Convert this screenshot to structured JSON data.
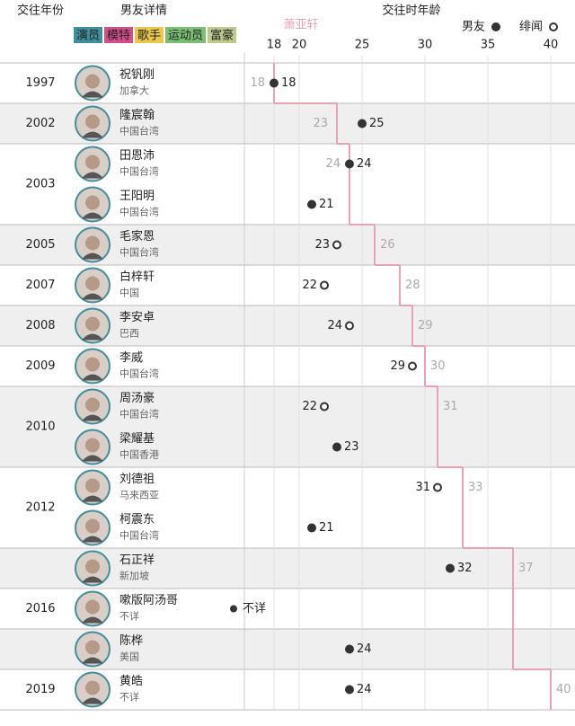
{
  "chart_data": {
    "type": "dot",
    "header": {
      "year": "交往年份",
      "details": "男友详情",
      "x_title": "交往时年龄"
    },
    "tags": [
      {
        "name": "演员",
        "color": "#3f8f9c"
      },
      {
        "name": "模特",
        "color": "#d14f8a"
      },
      {
        "name": "歌手",
        "color": "#e9c84a"
      },
      {
        "name": "运动员",
        "color": "#7bbf74"
      },
      {
        "name": "富豪",
        "color": "#bccb8c"
      }
    ],
    "line_name": "萧亚轩",
    "line_color": "#e6a4b2",
    "legend": [
      {
        "name": "男友",
        "marker": "filled"
      },
      {
        "name": "绯闻",
        "marker": "open"
      }
    ],
    "xlim": [
      18,
      40
    ],
    "xticks": [
      18,
      20,
      25,
      30,
      35,
      40
    ],
    "years": [
      {
        "label": "1997",
        "rows": 1
      },
      {
        "label": "2002",
        "rows": 1
      },
      {
        "label": "2003",
        "rows": 2
      },
      {
        "label": "2005",
        "rows": 1
      },
      {
        "label": "2007",
        "rows": 1
      },
      {
        "label": "2008",
        "rows": 1
      },
      {
        "label": "2009",
        "rows": 1
      },
      {
        "label": "2010",
        "rows": 2
      },
      {
        "label": "2012",
        "rows": 2
      },
      {
        "label": null,
        "rows": 1
      },
      {
        "label": "2016",
        "rows": 1
      },
      {
        "label": null,
        "rows": 1
      },
      {
        "label": "2019",
        "rows": 1
      }
    ],
    "names": [
      "祝钒刚",
      "隆宸翰",
      "田恩沛",
      "王阳明",
      "毛家恩",
      "白梓轩",
      "李安卓",
      "李威",
      "周汤豪",
      "梁耀基",
      "刘德祖",
      "柯震东",
      "石正祥",
      "嗽版阿汤哥",
      "陈桦",
      "黄皓"
    ],
    "origins": [
      "加拿大",
      "中国台湾",
      "中国台湾",
      "中国台湾",
      "中国台湾",
      "中国",
      "巴西",
      "中国台湾",
      "中国台湾",
      "中国香港",
      "马来西亚",
      "中国台湾",
      "新加坡",
      "不详",
      "美国",
      "不详"
    ],
    "ages": [
      18,
      25,
      24,
      21,
      23,
      22,
      24,
      29,
      22,
      23,
      31,
      21,
      32,
      null,
      24,
      24
    ],
    "age_labels": [
      null,
      null,
      null,
      null,
      null,
      null,
      null,
      null,
      null,
      null,
      null,
      null,
      null,
      "不详",
      null,
      null
    ],
    "relation": [
      0,
      0,
      0,
      0,
      1,
      1,
      1,
      1,
      1,
      0,
      1,
      0,
      0,
      0,
      0,
      0
    ],
    "her_ages": [
      18,
      23,
      24,
      24,
      26,
      28,
      29,
      30,
      31,
      31,
      33,
      33,
      37,
      37,
      37,
      40
    ],
    "her_age_labels": [
      "18",
      "23",
      "24",
      null,
      "26",
      "28",
      "29",
      "30",
      "31",
      null,
      "33",
      null,
      "37",
      null,
      null,
      "40"
    ]
  }
}
